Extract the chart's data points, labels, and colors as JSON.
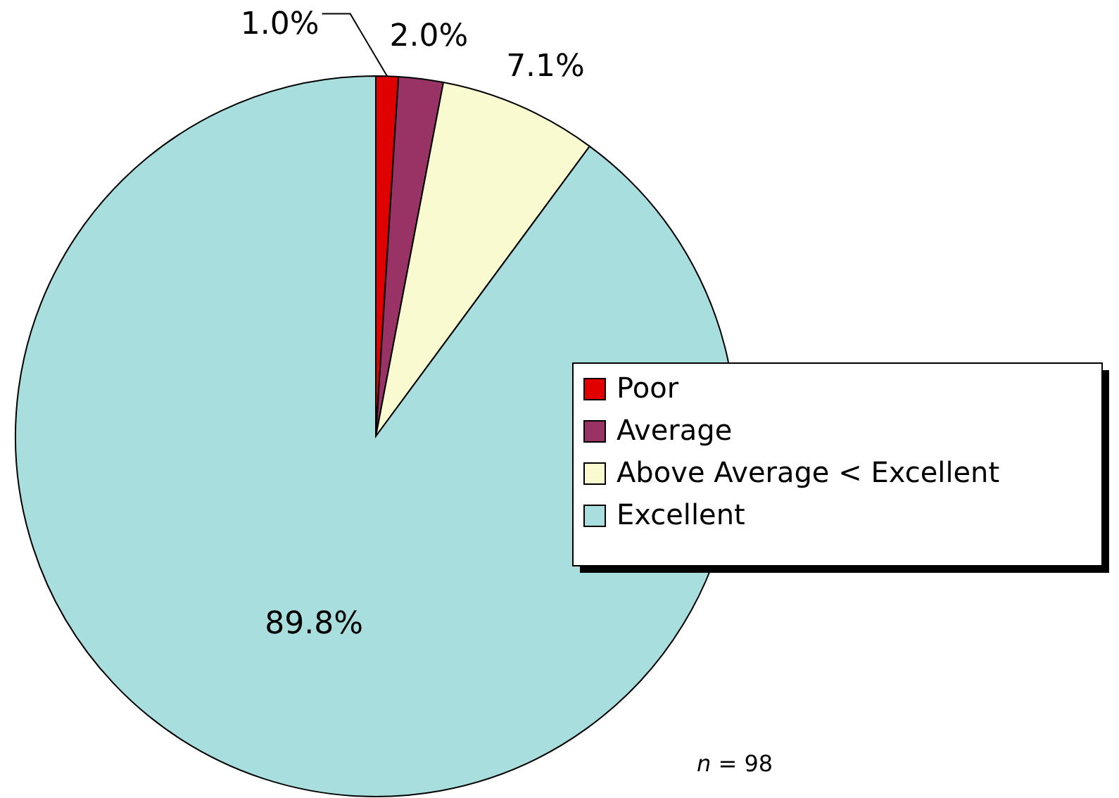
{
  "chart_data": {
    "type": "pie",
    "categories": [
      "Poor",
      "Average",
      "Above Average < Excellent",
      "Excellent"
    ],
    "values": [
      1.0,
      2.0,
      7.1,
      89.8
    ],
    "colors": [
      "#e00000",
      "#993366",
      "#fafad0",
      "#a9dede"
    ],
    "value_labels": [
      "1.0%",
      "2.0%",
      "7.1%",
      "89.8%"
    ],
    "legend": "right",
    "annotations": [
      "n = 98"
    ]
  }
}
